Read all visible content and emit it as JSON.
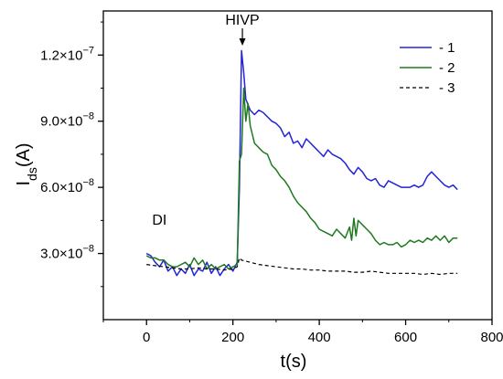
{
  "chart_data": {
    "type": "line",
    "xlabel": "t(s)",
    "ylabel": "Ids(A)",
    "ylabel_main": "I",
    "ylabel_sub": "ds",
    "ylabel_tail": "(A)",
    "xlim": [
      -100,
      800
    ],
    "ylim": [
      0,
      1.4e-07
    ],
    "x_ticks": [
      0,
      200,
      400,
      600,
      800
    ],
    "x_tick_labels": [
      "0",
      "200",
      "400",
      "600",
      "800"
    ],
    "y_ticks": [
      3e-08,
      6e-08,
      9e-08,
      1.2e-07
    ],
    "y_tick_labels": [
      {
        "mantissa": "3.0×10",
        "exp": "−8"
      },
      {
        "mantissa": "6.0×10",
        "exp": "−8"
      },
      {
        "mantissa": "9.0×10",
        "exp": "−8"
      },
      {
        "mantissa": "1.2×10",
        "exp": "−7"
      }
    ],
    "grid": false,
    "legend_position": "top-right",
    "annotations": {
      "hivp": {
        "text": "HIVP",
        "x": 222
      },
      "di": {
        "text": "DI",
        "x": 30,
        "y": 4.3e-08
      }
    },
    "series": [
      {
        "name": "- 1",
        "color": "#2323d8",
        "dash": "solid",
        "points": [
          [
            0,
            3e-08
          ],
          [
            10,
            2.9e-08
          ],
          [
            20,
            2.6e-08
          ],
          [
            30,
            2.4e-08
          ],
          [
            40,
            2.7e-08
          ],
          [
            50,
            2.2e-08
          ],
          [
            60,
            2.4e-08
          ],
          [
            70,
            2e-08
          ],
          [
            80,
            2.3e-08
          ],
          [
            90,
            2.1e-08
          ],
          [
            100,
            2.5e-08
          ],
          [
            110,
            2e-08
          ],
          [
            120,
            2.3e-08
          ],
          [
            130,
            2.2e-08
          ],
          [
            140,
            2.6e-08
          ],
          [
            150,
            2.1e-08
          ],
          [
            160,
            2.4e-08
          ],
          [
            170,
            2e-08
          ],
          [
            180,
            2.3e-08
          ],
          [
            190,
            2.5e-08
          ],
          [
            200,
            2.2e-08
          ],
          [
            210,
            2.6e-08
          ],
          [
            215,
            6e-08
          ],
          [
            220,
            1.22e-07
          ],
          [
            225,
            1.12e-07
          ],
          [
            230,
            1e-07
          ],
          [
            240,
            9.5e-08
          ],
          [
            250,
            9.3e-08
          ],
          [
            260,
            9.5e-08
          ],
          [
            270,
            9.4e-08
          ],
          [
            280,
            9.2e-08
          ],
          [
            290,
            9e-08
          ],
          [
            300,
            8.9e-08
          ],
          [
            310,
            8.7e-08
          ],
          [
            320,
            8.3e-08
          ],
          [
            330,
            8.5e-08
          ],
          [
            340,
            8e-08
          ],
          [
            350,
            8.1e-08
          ],
          [
            360,
            7.8e-08
          ],
          [
            370,
            8.2e-08
          ],
          [
            380,
            8e-08
          ],
          [
            390,
            7.8e-08
          ],
          [
            400,
            7.6e-08
          ],
          [
            410,
            7.4e-08
          ],
          [
            420,
            7.7e-08
          ],
          [
            430,
            7.5e-08
          ],
          [
            440,
            7.4e-08
          ],
          [
            450,
            7.3e-08
          ],
          [
            460,
            7.1e-08
          ],
          [
            470,
            6.8e-08
          ],
          [
            480,
            6.6e-08
          ],
          [
            490,
            6.9e-08
          ],
          [
            500,
            6.7e-08
          ],
          [
            510,
            6.4e-08
          ],
          [
            520,
            6.3e-08
          ],
          [
            530,
            6.4e-08
          ],
          [
            540,
            6.1e-08
          ],
          [
            550,
            6e-08
          ],
          [
            560,
            6.3e-08
          ],
          [
            570,
            6.2e-08
          ],
          [
            580,
            6.1e-08
          ],
          [
            590,
            6e-08
          ],
          [
            600,
            6e-08
          ],
          [
            610,
            6e-08
          ],
          [
            620,
            6.1e-08
          ],
          [
            630,
            6e-08
          ],
          [
            640,
            6.1e-08
          ],
          [
            650,
            6.5e-08
          ],
          [
            660,
            6.7e-08
          ],
          [
            670,
            6.5e-08
          ],
          [
            680,
            6.3e-08
          ],
          [
            690,
            6.1e-08
          ],
          [
            700,
            6e-08
          ],
          [
            710,
            6.1e-08
          ],
          [
            720,
            5.9e-08
          ]
        ]
      },
      {
        "name": "- 2",
        "color": "#1f7a1f",
        "dash": "solid",
        "points": [
          [
            0,
            2.9e-08
          ],
          [
            10,
            2.8e-08
          ],
          [
            20,
            2.8e-08
          ],
          [
            30,
            2.7e-08
          ],
          [
            40,
            2.7e-08
          ],
          [
            50,
            2.5e-08
          ],
          [
            60,
            2.4e-08
          ],
          [
            70,
            2.4e-08
          ],
          [
            80,
            2.5e-08
          ],
          [
            90,
            2.6e-08
          ],
          [
            100,
            2.4e-08
          ],
          [
            110,
            2.8e-08
          ],
          [
            120,
            2.5e-08
          ],
          [
            130,
            2.7e-08
          ],
          [
            140,
            2.3e-08
          ],
          [
            150,
            2.5e-08
          ],
          [
            160,
            2.3e-08
          ],
          [
            170,
            2.4e-08
          ],
          [
            180,
            2.5e-08
          ],
          [
            190,
            2.3e-08
          ],
          [
            200,
            2.4e-08
          ],
          [
            210,
            2.5e-08
          ],
          [
            215,
            7.2e-08
          ],
          [
            220,
            7.5e-08
          ],
          [
            225,
            1.05e-07
          ],
          [
            230,
            9e-08
          ],
          [
            235,
            9.8e-08
          ],
          [
            240,
            8.8e-08
          ],
          [
            250,
            8e-08
          ],
          [
            260,
            7.8e-08
          ],
          [
            270,
            7.6e-08
          ],
          [
            280,
            7.5e-08
          ],
          [
            290,
            7e-08
          ],
          [
            300,
            6.8e-08
          ],
          [
            310,
            6.5e-08
          ],
          [
            320,
            6.3e-08
          ],
          [
            330,
            6e-08
          ],
          [
            340,
            5.6e-08
          ],
          [
            350,
            5.3e-08
          ],
          [
            360,
            5.1e-08
          ],
          [
            370,
            4.9e-08
          ],
          [
            380,
            4.6e-08
          ],
          [
            390,
            4.4e-08
          ],
          [
            400,
            4.1e-08
          ],
          [
            410,
            4e-08
          ],
          [
            420,
            3.9e-08
          ],
          [
            430,
            3.8e-08
          ],
          [
            440,
            4.1e-08
          ],
          [
            450,
            3.9e-08
          ],
          [
            460,
            3.7e-08
          ],
          [
            470,
            4.2e-08
          ],
          [
            475,
            3.6e-08
          ],
          [
            480,
            4.6e-08
          ],
          [
            485,
            3.8e-08
          ],
          [
            490,
            4.5e-08
          ],
          [
            500,
            4.3e-08
          ],
          [
            510,
            4.1e-08
          ],
          [
            520,
            3.9e-08
          ],
          [
            530,
            3.6e-08
          ],
          [
            540,
            3.4e-08
          ],
          [
            550,
            3.5e-08
          ],
          [
            560,
            3.4e-08
          ],
          [
            570,
            3.4e-08
          ],
          [
            580,
            3.5e-08
          ],
          [
            590,
            3.3e-08
          ],
          [
            600,
            3.4e-08
          ],
          [
            610,
            3.6e-08
          ],
          [
            620,
            3.5e-08
          ],
          [
            630,
            3.6e-08
          ],
          [
            640,
            3.5e-08
          ],
          [
            650,
            3.7e-08
          ],
          [
            660,
            3.6e-08
          ],
          [
            670,
            3.8e-08
          ],
          [
            680,
            3.6e-08
          ],
          [
            690,
            3.8e-08
          ],
          [
            700,
            3.5e-08
          ],
          [
            710,
            3.7e-08
          ],
          [
            720,
            3.7e-08
          ]
        ]
      },
      {
        "name": "- 3",
        "color": "#000000",
        "dash": "dashed",
        "points": [
          [
            0,
            2.5e-08
          ],
          [
            20,
            2.45e-08
          ],
          [
            40,
            2.4e-08
          ],
          [
            60,
            2.35e-08
          ],
          [
            80,
            2.3e-08
          ],
          [
            100,
            2.3e-08
          ],
          [
            120,
            2.35e-08
          ],
          [
            140,
            2.3e-08
          ],
          [
            160,
            2.3e-08
          ],
          [
            180,
            2.25e-08
          ],
          [
            200,
            2.3e-08
          ],
          [
            210,
            2.4e-08
          ],
          [
            215,
            2.8e-08
          ],
          [
            220,
            2.7e-08
          ],
          [
            240,
            2.6e-08
          ],
          [
            260,
            2.5e-08
          ],
          [
            280,
            2.45e-08
          ],
          [
            300,
            2.4e-08
          ],
          [
            320,
            2.35e-08
          ],
          [
            340,
            2.3e-08
          ],
          [
            360,
            2.3e-08
          ],
          [
            380,
            2.25e-08
          ],
          [
            400,
            2.25e-08
          ],
          [
            420,
            2.2e-08
          ],
          [
            440,
            2.2e-08
          ],
          [
            460,
            2.2e-08
          ],
          [
            480,
            2.15e-08
          ],
          [
            500,
            2.15e-08
          ],
          [
            520,
            2.2e-08
          ],
          [
            540,
            2.15e-08
          ],
          [
            560,
            2.1e-08
          ],
          [
            580,
            2.1e-08
          ],
          [
            600,
            2.1e-08
          ],
          [
            620,
            2.1e-08
          ],
          [
            640,
            2.05e-08
          ],
          [
            660,
            2.1e-08
          ],
          [
            680,
            2.05e-08
          ],
          [
            700,
            2.1e-08
          ],
          [
            720,
            2.1e-08
          ]
        ]
      }
    ]
  }
}
